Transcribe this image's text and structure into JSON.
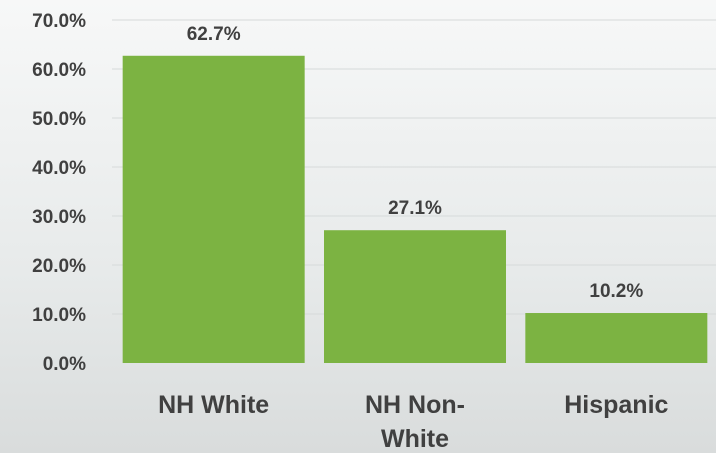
{
  "chart_data": {
    "type": "bar",
    "title": "",
    "xlabel": "",
    "ylabel": "",
    "categories": [
      [
        "NH White"
      ],
      [
        "NH Non-",
        "White"
      ],
      [
        "Hispanic"
      ]
    ],
    "values": [
      62.7,
      27.1,
      10.2
    ],
    "data_labels": [
      "62.7%",
      "27.1%",
      "10.2%"
    ],
    "ylim": [
      0,
      70
    ],
    "yticks": [
      0,
      10,
      20,
      30,
      40,
      50,
      60,
      70
    ],
    "ytick_labels": [
      "0.0%",
      "10.0%",
      "20.0%",
      "30.0%",
      "40.0%",
      "50.0%",
      "60.0%",
      "70.0%"
    ],
    "grid": true,
    "bar_color": "#7cb342",
    "legend": "none"
  }
}
